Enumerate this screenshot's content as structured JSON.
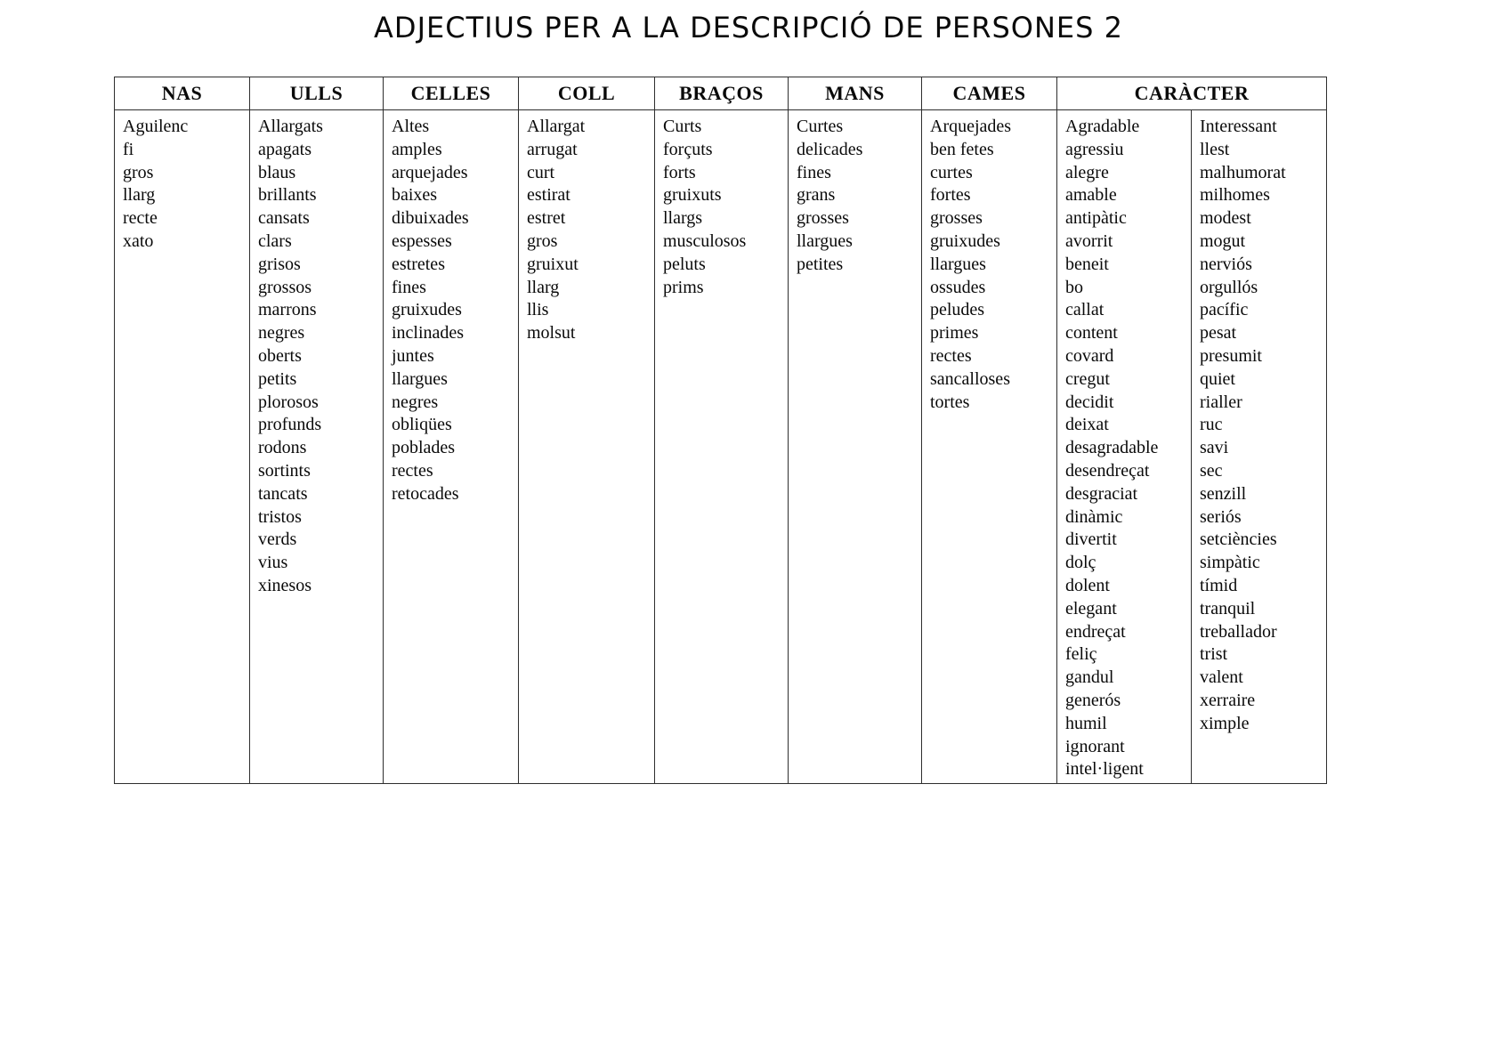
{
  "title": "ADJECTIUS PER A LA DESCRIPCIÓ DE PERSONES 2",
  "table": {
    "headers": [
      "NAS",
      "ULLS",
      "CELLES",
      "COLL",
      "BRAÇOS",
      "MANS",
      "CAMES",
      "CARÀCTER"
    ],
    "columns": {
      "nas": [
        "Aguilenc",
        "fi",
        "gros",
        "llarg",
        "recte",
        "xato"
      ],
      "ulls": [
        "Allargats",
        "apagats",
        "blaus",
        "brillants",
        "cansats",
        "clars",
        "grisos",
        "grossos",
        "marrons",
        "negres",
        "oberts",
        "petits",
        "plorosos",
        "profunds",
        "rodons",
        "sortints",
        "tancats",
        "tristos",
        "verds",
        "vius",
        "xinesos"
      ],
      "celles": [
        "Altes",
        "amples",
        "arquejades",
        "baixes",
        "dibuixades",
        "espesses",
        "estretes",
        "fines",
        "gruixudes",
        "inclinades",
        "juntes",
        "llargues",
        "negres",
        "obliqües",
        "poblades",
        "rectes",
        "retocades"
      ],
      "coll": [
        "Allargat",
        "arrugat",
        "curt",
        "estirat",
        "estret",
        "gros",
        "gruixut",
        "llarg",
        "llis",
        "molsut"
      ],
      "bracos": [
        "Curts",
        "forçuts",
        "forts",
        "gruixuts",
        "llargs",
        "musculosos",
        "peluts",
        "prims"
      ],
      "mans": [
        "Curtes",
        "delicades",
        "fines",
        "grans",
        "grosses",
        "llargues",
        "petites"
      ],
      "cames": [
        "Arquejades",
        "ben fetes",
        "curtes",
        "fortes",
        "grosses",
        "gruixudes",
        "llargues",
        "ossudes",
        "peludes",
        "primes",
        "rectes",
        "sancalloses",
        "tortes"
      ],
      "caracter_1": [
        "Agradable",
        "agressiu",
        "alegre",
        "amable",
        "antipàtic",
        "avorrit",
        "beneit",
        "bo",
        "callat",
        "content",
        "covard",
        "cregut",
        "decidit",
        "deixat",
        "desagradable",
        "desendreçat",
        "desgraciat",
        "dinàmic",
        "divertit",
        "dolç",
        "dolent",
        "elegant",
        "endreçat",
        "feliç",
        "gandul",
        "generós",
        "humil",
        "ignorant",
        "intel·ligent"
      ],
      "caracter_2": [
        "Interessant",
        "llest",
        "malhumorat",
        "milhomes",
        "modest",
        "mogut",
        "nerviós",
        "orgullós",
        "pacífic",
        "pesat",
        "presumit",
        "quiet",
        "rialler",
        "ruc",
        "savi",
        "sec",
        "senzill",
        "seriós",
        "setciències",
        "simpàtic",
        "tímid",
        "tranquil",
        "treballador",
        "trist",
        "valent",
        "xerraire",
        "ximple"
      ]
    }
  }
}
